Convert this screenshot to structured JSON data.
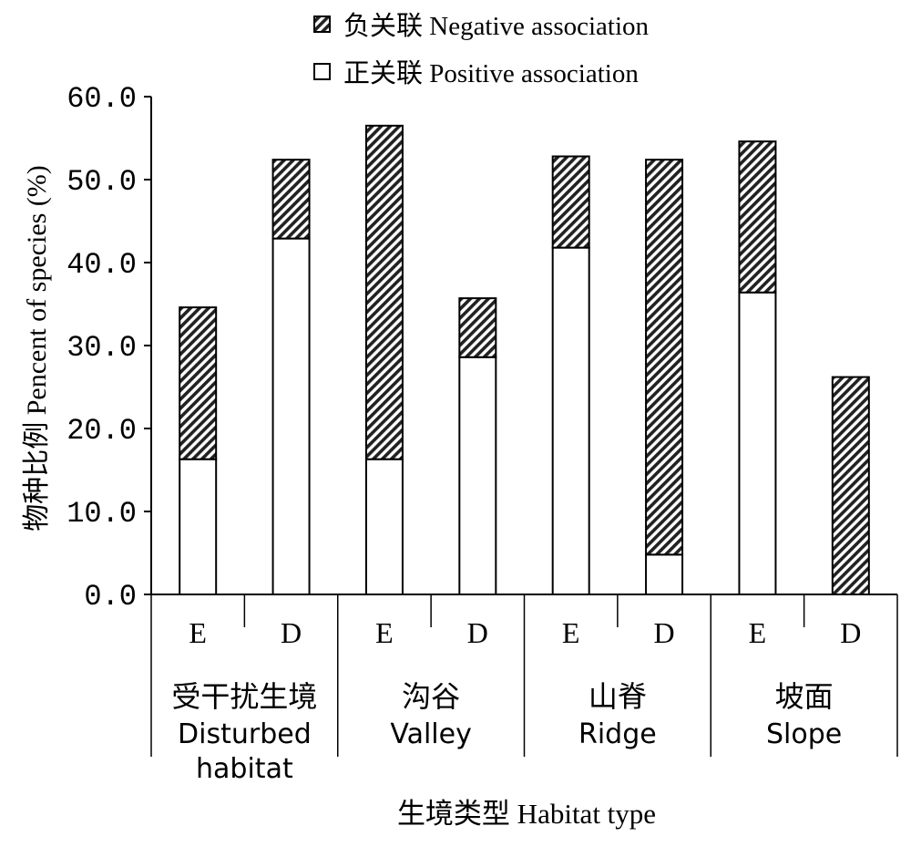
{
  "chart_data": {
    "type": "bar",
    "stacked": true,
    "ylabel": "物种比例 Pencent of species (%)",
    "xlabel": "生境类型 Habitat type",
    "ylim": [
      0,
      60
    ],
    "yticks": [
      "0.0",
      "10.0",
      "20.0",
      "30.0",
      "40.0",
      "50.0",
      "60.0"
    ],
    "ytick_values": [
      0,
      10,
      20,
      30,
      40,
      50,
      60
    ],
    "legend_position": "top-center",
    "groups": [
      {
        "label_zh": "受干扰生境",
        "label_en": [
          "Disturbed",
          "habitat"
        ],
        "categories": [
          "E",
          "D"
        ]
      },
      {
        "label_zh": "沟谷",
        "label_en": [
          "Valley"
        ],
        "categories": [
          "E",
          "D"
        ]
      },
      {
        "label_zh": "山脊",
        "label_en": [
          "Ridge"
        ],
        "categories": [
          "E",
          "D"
        ]
      },
      {
        "label_zh": "坡面",
        "label_en": [
          "Slope"
        ],
        "categories": [
          "E",
          "D"
        ]
      }
    ],
    "categories": [
      "E",
      "D",
      "E",
      "D",
      "E",
      "D",
      "E",
      "D"
    ],
    "series": [
      {
        "name": "正关联 Positive association",
        "pattern": "white",
        "values": [
          16.3,
          42.9,
          16.3,
          28.6,
          41.8,
          4.8,
          36.4,
          0.0
        ]
      },
      {
        "name": "负关联 Negative association",
        "pattern": "hatched",
        "values": [
          18.3,
          9.5,
          40.2,
          7.1,
          11.0,
          47.6,
          18.2,
          26.2
        ]
      }
    ],
    "grid": false
  }
}
